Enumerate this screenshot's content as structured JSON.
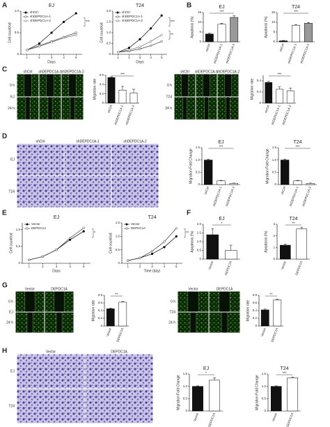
{
  "panels": [
    "A",
    "B",
    "C",
    "D",
    "E",
    "F",
    "G",
    "H"
  ],
  "chart_data": [
    {
      "type": "line",
      "title": "EJ",
      "y_label": "Cell count/od",
      "x_label": "Days",
      "x": [
        1,
        2,
        3,
        4,
        5
      ],
      "xlim": [
        0.5,
        5.5
      ],
      "xticks": [
        1,
        2,
        3,
        4,
        5
      ],
      "ylim": [
        0,
        1
      ],
      "yticks": [
        0,
        0.5,
        {
          "value": 1,
          "label": "1.0"
        }
      ],
      "annotations": [
        "***"
      ],
      "series": [
        {
          "name": "shCtrl",
          "color": "#000000",
          "marker_fill": "#000000",
          "values": [
            0.1,
            0.25,
            0.5,
            0.75,
            0.95
          ]
        },
        {
          "name": "shDEPDC1A-1",
          "color": "#333333",
          "marker_fill": "#ffffff",
          "values": [
            0.1,
            0.2,
            0.3,
            0.4,
            0.5
          ]
        },
        {
          "name": "shDEPDC1A-2",
          "color": "#666666",
          "marker_fill": "#ffffff",
          "values": [
            0.1,
            0.18,
            0.28,
            0.38,
            0.45
          ]
        }
      ]
    },
    {
      "type": "line",
      "title": "T24",
      "y_label": "Cell count/od",
      "x_label": "Days",
      "x": [
        1,
        2,
        3,
        4,
        5
      ],
      "xlim": [
        0.5,
        5.5
      ],
      "xticks": [
        1,
        2,
        3,
        4,
        5
      ],
      "ylim": [
        0,
        2
      ],
      "yticks": [
        0,
        0.5,
        {
          "value": 1,
          "label": "1.0"
        },
        1.5,
        {
          "value": 2,
          "label": "2.0"
        }
      ],
      "annotations": [
        "***",
        "**"
      ],
      "series": [
        {
          "name": "shCtrl",
          "color": "#000000",
          "marker_fill": "#000000",
          "values": [
            0.1,
            0.3,
            0.7,
            1.2,
            1.8
          ]
        },
        {
          "name": "shDEPDC1A-1",
          "color": "#333333",
          "marker_fill": "#ffffff",
          "values": [
            0.1,
            0.15,
            0.25,
            0.4,
            0.6
          ]
        },
        {
          "name": "shDEPDC1A-2",
          "color": "#666666",
          "marker_fill": "#ffffff",
          "values": [
            0.1,
            0.2,
            0.35,
            0.6,
            0.9
          ]
        }
      ]
    },
    {
      "type": "bar",
      "title": "EJ",
      "y_label": "Apoptosis (%)",
      "categories": [
        "shCtrl",
        "shDEPDC1A-1",
        "shDEPDC1A-2"
      ],
      "values": [
        4,
        9,
        12.5
      ],
      "errors": [
        0.4,
        0.5,
        0.8
      ],
      "colors": [
        "#111111",
        "#ffffff",
        "#999999"
      ],
      "ylim": [
        0,
        15
      ],
      "yticks": [
        0,
        5,
        10,
        15
      ],
      "annotations": [
        "***"
      ]
    },
    {
      "type": "bar",
      "title": "T24",
      "y_label": "Apoptosis (%)",
      "categories": [
        "shCtrl",
        "shDEPDC1A-1",
        "shDEPDC1A-2"
      ],
      "values": [
        0.5,
        8.5,
        9.5
      ],
      "errors": [
        0.2,
        0.3,
        0.4
      ],
      "colors": [
        "#111111",
        "#ffffff",
        "#999999"
      ],
      "ylim": [
        0,
        15
      ],
      "yticks": [
        0,
        5,
        10,
        15
      ],
      "annotations": [
        "***"
      ]
    },
    {
      "type": "bar",
      "y_label": "Migration rate",
      "categories": [
        "shCtrl",
        "shDEPDC1A-1",
        "shDEPDC1A-2"
      ],
      "values": [
        0.55,
        0.28,
        0.22
      ],
      "errors": [
        0.02,
        0.08,
        0.08
      ],
      "colors": [
        "#111111",
        "#ffffff",
        "#ffffff"
      ],
      "ylim": [
        0,
        0.6
      ],
      "yticks": [
        0,
        0.2,
        0.4,
        0.6
      ],
      "annotations": [
        "***"
      ]
    },
    {
      "type": "bar",
      "y_label": "Migration rate",
      "categories": [
        "shCtrl",
        "shDEPDC1A-1",
        "shDEPDC1A-2"
      ],
      "values": [
        0.37,
        0.25,
        0.22
      ],
      "errors": [
        0.02,
        0.04,
        0.05
      ],
      "colors": [
        "#111111",
        "#ffffff",
        "#ffffff"
      ],
      "ylim": [
        0,
        0.5
      ],
      "yticks": [
        0,
        0.2,
        0.4
      ],
      "annotations": [
        "***"
      ]
    },
    {
      "type": "bar",
      "title": "EJ",
      "y_label": "Migration Fold Change",
      "categories": [
        "shCtrl",
        "shDEPDC1A-1",
        "shDEPDC1A-2"
      ],
      "values": [
        1,
        0.15,
        0.05
      ],
      "errors": [
        0.03,
        0.02,
        0.01
      ],
      "colors": [
        "#111111",
        "#ffffff",
        "#ffffff"
      ],
      "ylim": [
        0,
        1.5
      ],
      "yticks": [
        0,
        0.5,
        {
          "value": 1,
          "label": "1.0"
        },
        1.5
      ],
      "annotations": [
        "***"
      ]
    },
    {
      "type": "bar",
      "title": "T24",
      "y_label": "Migration Fold Change",
      "categories": [
        "shCtrl",
        "shDEPDC1A-1",
        "shDEPDC1A-2"
      ],
      "values": [
        1,
        0.15,
        0.05
      ],
      "errors": [
        0.03,
        0.02,
        0.01
      ],
      "colors": [
        "#111111",
        "#ffffff",
        "#ffffff"
      ],
      "ylim": [
        0,
        1.5
      ],
      "yticks": [
        0,
        0.5,
        {
          "value": 1,
          "label": "1.0"
        },
        1.5
      ],
      "annotations": [
        "***"
      ]
    },
    {
      "type": "line",
      "title": "EJ",
      "y_label": "Cell count/od",
      "x_label": "Days",
      "x": [
        1,
        2,
        3,
        4,
        5
      ],
      "xlim": [
        0.5,
        5.5
      ],
      "xticks": [
        1,
        2,
        3,
        4,
        5
      ],
      "ylim": [
        0,
        1.2
      ],
      "yticks": [
        0,
        0.5,
        {
          "value": 1,
          "label": "1.0"
        }
      ],
      "annotations": [
        "*"
      ],
      "series": [
        {
          "name": "Vector",
          "color": "#000000",
          "marker_fill": "#000000",
          "values": [
            0.1,
            0.2,
            0.4,
            0.7,
            0.95
          ]
        },
        {
          "name": "DEPDC1A",
          "color": "#333333",
          "marker_fill": "#ffffff",
          "values": [
            0.1,
            0.2,
            0.4,
            0.75,
            1.05
          ]
        }
      ]
    },
    {
      "type": "line",
      "title": "T24",
      "y_label": "Cell count/od",
      "x_label": "Time (day)",
      "x": [
        1,
        2,
        3,
        4,
        5
      ],
      "xlim": [
        0.5,
        5.5
      ],
      "xticks": [
        1,
        2,
        3,
        4,
        5
      ],
      "ylim": [
        0,
        1.5
      ],
      "yticks": [
        0,
        0.5,
        {
          "value": 1,
          "label": "1.0"
        },
        1.5
      ],
      "annotations": [
        "**"
      ],
      "series": [
        {
          "name": "Vector",
          "color": "#000000",
          "marker_fill": "#000000",
          "values": [
            0.1,
            0.2,
            0.35,
            0.6,
            1
          ]
        },
        {
          "name": "DEPDC1A",
          "color": "#333333",
          "marker_fill": "#ffffff",
          "values": [
            0.1,
            0.2,
            0.45,
            0.8,
            1.3
          ]
        }
      ]
    },
    {
      "type": "bar",
      "title": "EJ",
      "y_label": "Apoptosis (%)",
      "categories": [
        "Vector",
        "DEPDC1A"
      ],
      "values": [
        1.4,
        0.5
      ],
      "errors": [
        0.35,
        0.3
      ],
      "colors": [
        "#111111",
        "#ffffff"
      ],
      "ylim": [
        0,
        2
      ],
      "yticks": [
        0,
        0.5,
        {
          "value": 1,
          "label": "1.0"
        },
        1.5,
        {
          "value": 2,
          "label": "2.0"
        }
      ],
      "annotations": [
        "*"
      ]
    },
    {
      "type": "bar",
      "title": "T24",
      "y_label": "Apoptosis (%)",
      "categories": [
        "Vector",
        "DEPDC1A"
      ],
      "values": [
        1.2,
        2.6
      ],
      "errors": [
        0.1,
        0.15
      ],
      "colors": [
        "#111111",
        "#ffffff"
      ],
      "ylim": [
        0,
        3
      ],
      "yticks": [
        0,
        1,
        2,
        3
      ],
      "annotations": [
        "**"
      ]
    },
    {
      "type": "bar",
      "y_label": "Migration rate",
      "categories": [
        "Vector",
        "DEPDC1A"
      ],
      "values": [
        0.45,
        0.62
      ],
      "errors": [
        0.02,
        0.02
      ],
      "colors": [
        "#111111",
        "#ffffff"
      ],
      "ylim": [
        0,
        0.8
      ],
      "yticks": [
        0,
        0.2,
        0.4,
        0.6,
        0.8
      ],
      "annotations": [
        "**"
      ]
    },
    {
      "type": "bar",
      "y_label": "Migration rate",
      "categories": [
        "Vector",
        "DEPDC1A"
      ],
      "values": [
        0.42,
        0.68
      ],
      "errors": [
        0.02,
        0.02
      ],
      "colors": [
        "#111111",
        "#ffffff"
      ],
      "ylim": [
        0,
        0.8
      ],
      "yticks": [
        0,
        0.2,
        0.4,
        0.6,
        0.8
      ],
      "annotations": [
        "**"
      ]
    },
    {
      "type": "bar",
      "title": "EJ",
      "y_label": "Migration Fold Change",
      "categories": [
        "Vector",
        "DEPDC1A"
      ],
      "values": [
        1,
        1.25
      ],
      "errors": [
        0.02,
        0.1
      ],
      "colors": [
        "#111111",
        "#ffffff"
      ],
      "ylim": [
        0,
        1.5
      ],
      "yticks": [
        0,
        0.5,
        {
          "value": 1,
          "label": "1.0"
        },
        1.5
      ],
      "annotations": [
        "*"
      ]
    },
    {
      "type": "bar",
      "title": "T24",
      "y_label": "Migration Fold Change",
      "categories": [
        "Vector",
        "DEPDC1A"
      ],
      "values": [
        1,
        1.35
      ],
      "errors": [
        0.02,
        0.03
      ],
      "colors": [
        "#111111",
        "#ffffff"
      ],
      "ylim": [
        0,
        1.5
      ],
      "yticks": [
        0,
        0.5,
        {
          "value": 1,
          "label": "1.0"
        },
        1.5
      ],
      "annotations": [
        "***"
      ]
    }
  ],
  "image_panels": [
    {
      "style": "scratch",
      "cell_line": "EJ",
      "columns": [
        "shCtrl",
        "shDEPDC1A-1",
        "shDEPDC1A-2"
      ],
      "rows": [
        "0 h",
        "24 h"
      ]
    },
    {
      "style": "scratch",
      "cell_line": "T24",
      "columns": [
        "shCtrl",
        "shDEPDC1A-1",
        "shDEPDC1A-2"
      ],
      "rows": [
        "0 h",
        "24 h"
      ]
    },
    {
      "style": "transwell",
      "columns": [
        "shCtrl",
        "shDEPDC1A-1",
        "shDEPDC1A-2"
      ],
      "rows": [
        "EJ",
        "T24"
      ]
    },
    {
      "style": "scratch",
      "cell_line": "EJ",
      "columns": [
        "Vector",
        "DEPDC1A"
      ],
      "rows": [
        "0 h",
        "24 h"
      ]
    },
    {
      "style": "scratch",
      "cell_line": "T24",
      "columns": [
        "Vector",
        "DEPDC1A"
      ],
      "rows": [
        "0 h",
        "24 h"
      ]
    },
    {
      "style": "transwell",
      "columns": [
        "Vector",
        "DEPDC1A"
      ],
      "rows": [
        "EJ",
        "T24"
      ]
    }
  ]
}
